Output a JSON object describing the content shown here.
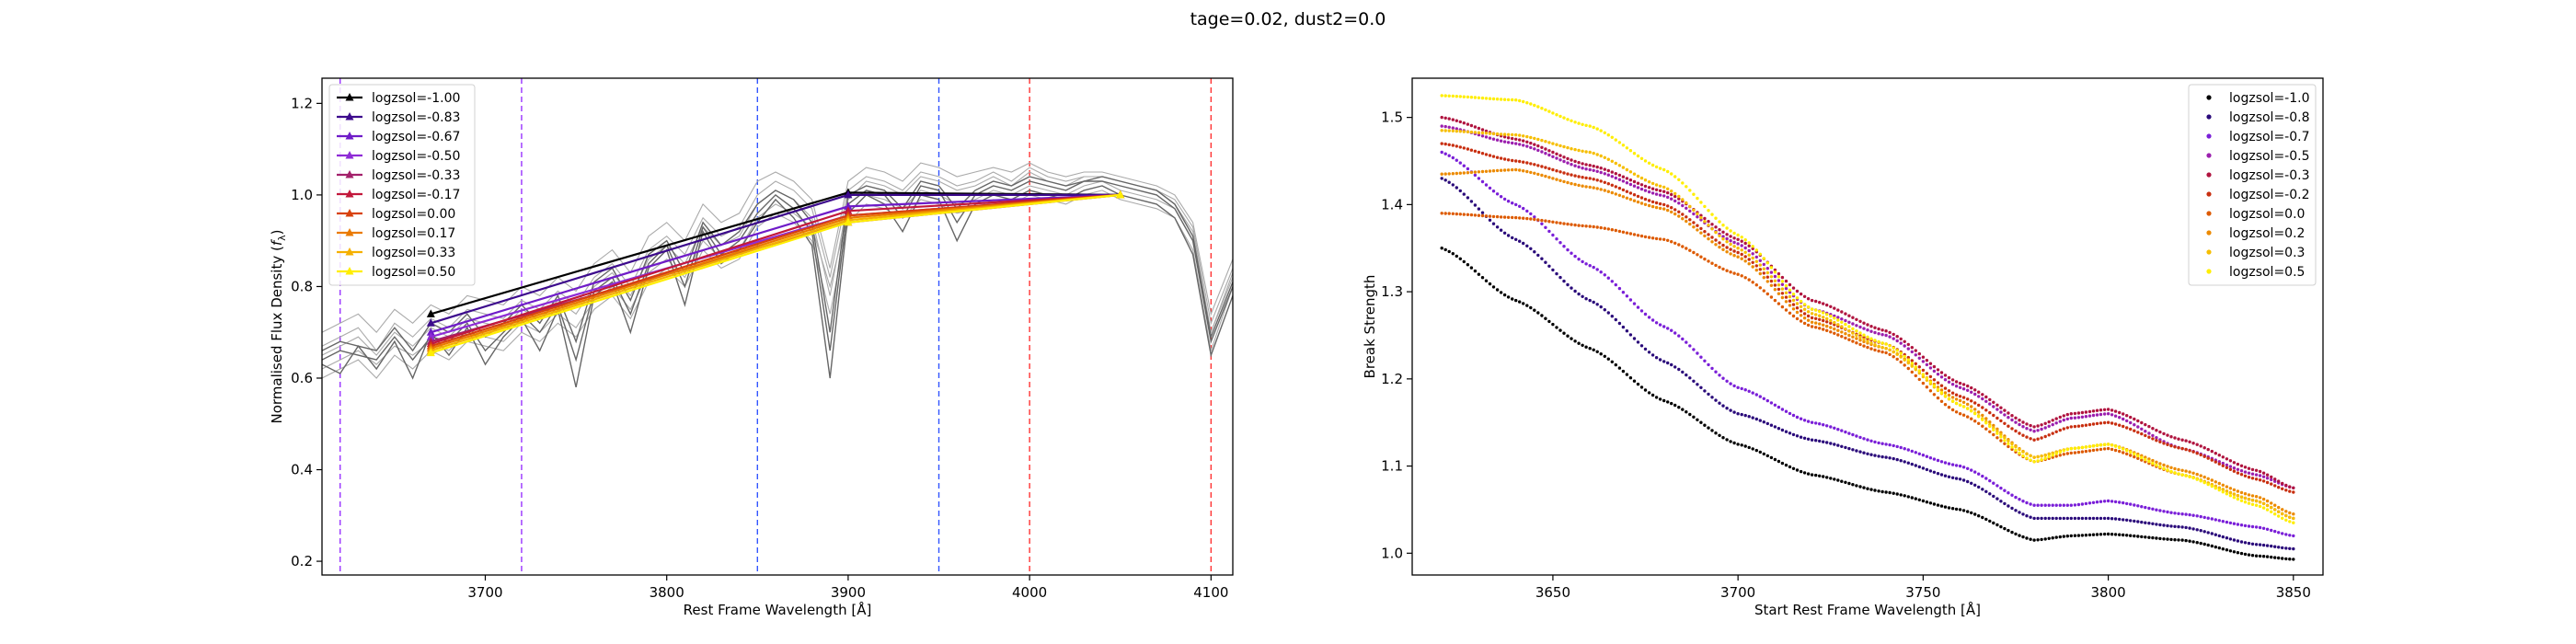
{
  "figure": {
    "suptitle": "tage=0.02, dust2=0.0"
  },
  "chart_data": [
    {
      "type": "line",
      "xlabel": "Rest Frame Wavelength [Å]",
      "ylabel": "Normalised Flux Density (f_λ)",
      "xlim": [
        3610,
        4112
      ],
      "ylim": [
        0.17,
        1.255
      ],
      "xticks": [
        3700,
        3800,
        3900,
        4000,
        4100
      ],
      "yticks": [
        0.2,
        0.4,
        0.6,
        0.8,
        1.0,
        1.2
      ],
      "ytick_labels": [
        "0.2",
        "0.4",
        "0.6",
        "0.8",
        "1.0",
        "1.2"
      ],
      "legend_loc": "upper-left",
      "vlines": [
        {
          "x": 3620,
          "color": "#9933ff"
        },
        {
          "x": 3720,
          "color": "#9933ff"
        },
        {
          "x": 3850,
          "color": "#3355ff"
        },
        {
          "x": 3950,
          "color": "#3355ff"
        },
        {
          "x": 4000,
          "color": "#ff3333"
        },
        {
          "x": 4100,
          "color": "#ff3333"
        }
      ],
      "spectra_x": [
        3610,
        3620,
        3630,
        3640,
        3650,
        3660,
        3670,
        3680,
        3690,
        3700,
        3710,
        3720,
        3730,
        3740,
        3750,
        3760,
        3770,
        3780,
        3790,
        3800,
        3810,
        3820,
        3830,
        3840,
        3850,
        3860,
        3870,
        3880,
        3890,
        3900,
        3910,
        3920,
        3930,
        3940,
        3950,
        3960,
        3970,
        3980,
        3990,
        4000,
        4010,
        4020,
        4030,
        4040,
        4050,
        4060,
        4070,
        4080,
        4090,
        4100,
        4112
      ],
      "spectra": [
        [
          0.62,
          0.64,
          0.66,
          0.63,
          0.67,
          0.65,
          0.68,
          0.66,
          0.7,
          0.69,
          0.68,
          0.72,
          0.7,
          0.74,
          0.71,
          0.77,
          0.8,
          0.75,
          0.83,
          0.86,
          0.82,
          0.9,
          0.86,
          0.88,
          0.95,
          0.98,
          0.96,
          0.93,
          0.8,
          0.96,
          1.0,
          0.99,
          0.97,
          1.01,
          1.0,
          0.98,
          0.99,
          1.01,
          1.0,
          1.02,
          1.01,
          1.0,
          1.02,
          1.03,
          1.01,
          1.0,
          0.99,
          0.97,
          0.9,
          0.7,
          0.82
        ],
        [
          0.65,
          0.67,
          0.69,
          0.65,
          0.7,
          0.67,
          0.71,
          0.69,
          0.73,
          0.72,
          0.71,
          0.75,
          0.73,
          0.77,
          0.74,
          0.8,
          0.83,
          0.78,
          0.86,
          0.89,
          0.85,
          0.93,
          0.89,
          0.91,
          0.98,
          1.01,
          0.99,
          0.95,
          0.78,
          0.99,
          1.03,
          1.02,
          1.0,
          1.04,
          1.03,
          1.01,
          1.02,
          1.04,
          1.02,
          1.05,
          1.03,
          1.02,
          1.04,
          1.04,
          1.03,
          1.02,
          1.01,
          0.99,
          0.93,
          0.72,
          0.84
        ],
        [
          0.6,
          0.62,
          0.64,
          0.6,
          0.65,
          0.62,
          0.66,
          0.64,
          0.68,
          0.67,
          0.66,
          0.7,
          0.68,
          0.72,
          0.69,
          0.75,
          0.78,
          0.73,
          0.81,
          0.84,
          0.8,
          0.88,
          0.84,
          0.86,
          0.93,
          0.96,
          0.94,
          0.9,
          0.74,
          0.94,
          0.98,
          0.97,
          0.95,
          0.99,
          0.98,
          0.96,
          0.97,
          0.99,
          0.98,
          1.0,
          0.99,
          0.98,
          1.0,
          1.01,
          0.99,
          0.98,
          0.97,
          0.95,
          0.88,
          0.66,
          0.8
        ],
        [
          0.7,
          0.72,
          0.74,
          0.7,
          0.75,
          0.72,
          0.76,
          0.74,
          0.78,
          0.77,
          0.76,
          0.8,
          0.78,
          0.82,
          0.79,
          0.85,
          0.88,
          0.83,
          0.91,
          0.94,
          0.9,
          0.98,
          0.94,
          0.96,
          1.03,
          1.05,
          1.03,
          0.99,
          0.84,
          1.03,
          1.06,
          1.05,
          1.03,
          1.07,
          1.06,
          1.04,
          1.05,
          1.06,
          1.05,
          1.07,
          1.05,
          1.04,
          1.05,
          1.05,
          1.04,
          1.03,
          1.02,
          1.0,
          0.94,
          0.74,
          0.86
        ],
        [
          0.67,
          0.69,
          0.71,
          0.66,
          0.72,
          0.69,
          0.73,
          0.71,
          0.75,
          0.74,
          0.73,
          0.77,
          0.75,
          0.79,
          0.76,
          0.82,
          0.85,
          0.8,
          0.88,
          0.91,
          0.87,
          0.95,
          0.91,
          0.93,
          1.0,
          1.03,
          1.01,
          0.97,
          0.82,
          1.01,
          1.04,
          1.03,
          1.01,
          1.05,
          1.04,
          1.02,
          1.03,
          1.05,
          1.03,
          1.06,
          1.04,
          1.03,
          1.04,
          1.04,
          1.03,
          1.02,
          1.01,
          0.98,
          0.92,
          0.7,
          0.83
        ],
        [
          0.63,
          0.61,
          0.67,
          0.62,
          0.68,
          0.6,
          0.7,
          0.65,
          0.71,
          0.63,
          0.69,
          0.73,
          0.66,
          0.75,
          0.58,
          0.78,
          0.81,
          0.7,
          0.84,
          0.88,
          0.76,
          0.92,
          0.85,
          0.88,
          0.94,
          0.99,
          0.95,
          0.89,
          0.6,
          0.96,
          1.0,
          0.98,
          0.92,
          1.0,
          0.99,
          0.9,
          0.98,
          1.0,
          0.99,
          1.01,
          1.0,
          0.99,
          1.01,
          1.02,
          1.0,
          0.99,
          0.98,
          0.95,
          0.87,
          0.65,
          0.78
        ],
        [
          0.64,
          0.66,
          0.65,
          0.64,
          0.69,
          0.64,
          0.69,
          0.68,
          0.72,
          0.66,
          0.7,
          0.74,
          0.7,
          0.76,
          0.64,
          0.79,
          0.82,
          0.74,
          0.85,
          0.89,
          0.8,
          0.93,
          0.87,
          0.9,
          0.96,
          1.0,
          0.97,
          0.92,
          0.66,
          0.98,
          1.01,
          1.0,
          0.95,
          1.02,
          1.01,
          0.94,
          1.0,
          1.02,
          1.01,
          1.03,
          1.02,
          1.01,
          1.03,
          1.03,
          1.02,
          1.01,
          1.0,
          0.97,
          0.9,
          0.68,
          0.8
        ],
        [
          0.66,
          0.68,
          0.67,
          0.66,
          0.71,
          0.66,
          0.72,
          0.7,
          0.74,
          0.69,
          0.72,
          0.76,
          0.72,
          0.78,
          0.68,
          0.81,
          0.84,
          0.77,
          0.87,
          0.9,
          0.83,
          0.94,
          0.89,
          0.92,
          0.98,
          1.01,
          0.99,
          0.94,
          0.7,
          1.0,
          1.02,
          1.01,
          0.97,
          1.03,
          1.02,
          0.97,
          1.01,
          1.03,
          1.02,
          1.04,
          1.03,
          1.02,
          1.03,
          1.04,
          1.03,
          1.02,
          1.01,
          0.98,
          0.91,
          0.69,
          0.81
        ]
      ],
      "series": [
        {
          "name": "logzsol=-1.00",
          "color": "#000000",
          "x": [
            3670,
            3900,
            4050
          ],
          "y": [
            0.74,
            1.005,
            1.0
          ]
        },
        {
          "name": "logzsol=-0.83",
          "color": "#3c0a8c",
          "x": [
            3670,
            3900,
            4050
          ],
          "y": [
            0.72,
            1.0,
            1.0
          ]
        },
        {
          "name": "logzsol=-0.67",
          "color": "#6f1cc8",
          "x": [
            3670,
            3900,
            4050
          ],
          "y": [
            0.7,
            0.975,
            1.0
          ]
        },
        {
          "name": "logzsol=-0.50",
          "color": "#8e2bd6",
          "x": [
            3670,
            3900,
            4050
          ],
          "y": [
            0.69,
            0.955,
            1.0
          ]
        },
        {
          "name": "logzsol=-0.33",
          "color": "#a3206b",
          "x": [
            3670,
            3900,
            4050
          ],
          "y": [
            0.68,
            0.94,
            1.0
          ]
        },
        {
          "name": "logzsol=-0.17",
          "color": "#c2183c",
          "x": [
            3670,
            3900,
            4050
          ],
          "y": [
            0.675,
            0.965,
            1.0
          ]
        },
        {
          "name": "logzsol=0.00",
          "color": "#d8420d",
          "x": [
            3670,
            3900,
            4050
          ],
          "y": [
            0.67,
            0.955,
            1.0
          ]
        },
        {
          "name": "logzsol=0.17",
          "color": "#ea7a00",
          "x": [
            3670,
            3900,
            4050
          ],
          "y": [
            0.665,
            0.95,
            1.0
          ]
        },
        {
          "name": "logzsol=0.33",
          "color": "#f5b000",
          "x": [
            3670,
            3900,
            4050
          ],
          "y": [
            0.66,
            0.945,
            1.0
          ]
        },
        {
          "name": "logzsol=0.50",
          "color": "#ffee00",
          "x": [
            3670,
            3900,
            4050
          ],
          "y": [
            0.655,
            0.94,
            1.0
          ]
        }
      ]
    },
    {
      "type": "scatter",
      "xlabel": "Start Rest Frame Wavelength [Å]",
      "ylabel": "Break Strength",
      "xlim": [
        3612,
        3858
      ],
      "ylim": [
        0.975,
        1.545
      ],
      "xticks": [
        3650,
        3700,
        3750,
        3800,
        3850
      ],
      "yticks": [
        1.0,
        1.1,
        1.2,
        1.3,
        1.4,
        1.5
      ],
      "ytick_labels": [
        "1.0",
        "1.1",
        "1.2",
        "1.3",
        "1.4",
        "1.5"
      ],
      "legend_loc": "upper-right",
      "x": [
        3620,
        3640,
        3660,
        3680,
        3700,
        3720,
        3740,
        3760,
        3780,
        3790,
        3800,
        3820,
        3840,
        3850
      ],
      "series": [
        {
          "name": "logzsol=-1.0",
          "color": "#000000",
          "values": [
            1.35,
            1.29,
            1.235,
            1.175,
            1.125,
            1.09,
            1.07,
            1.05,
            1.015,
            1.02,
            1.022,
            1.015,
            0.997,
            0.993
          ]
        },
        {
          "name": "logzsol=-0.8",
          "color": "#2a0a7a",
          "values": [
            1.43,
            1.36,
            1.29,
            1.22,
            1.16,
            1.13,
            1.11,
            1.085,
            1.04,
            1.04,
            1.04,
            1.03,
            1.01,
            1.005
          ]
        },
        {
          "name": "logzsol=-0.7",
          "color": "#7a1fd8",
          "values": [
            1.46,
            1.4,
            1.33,
            1.26,
            1.19,
            1.15,
            1.125,
            1.1,
            1.055,
            1.055,
            1.06,
            1.045,
            1.03,
            1.02
          ]
        },
        {
          "name": "logzsol=-0.5",
          "color": "#9b1fae",
          "values": [
            1.49,
            1.47,
            1.44,
            1.41,
            1.355,
            1.28,
            1.25,
            1.19,
            1.14,
            1.155,
            1.16,
            1.12,
            1.09,
            1.075
          ]
        },
        {
          "name": "logzsol=-0.3",
          "color": "#b0143f",
          "values": [
            1.5,
            1.475,
            1.445,
            1.415,
            1.36,
            1.29,
            1.255,
            1.195,
            1.145,
            1.16,
            1.165,
            1.13,
            1.095,
            1.075
          ]
        },
        {
          "name": "logzsol=-0.2",
          "color": "#c82f10",
          "values": [
            1.47,
            1.45,
            1.43,
            1.4,
            1.345,
            1.27,
            1.24,
            1.18,
            1.13,
            1.145,
            1.15,
            1.12,
            1.085,
            1.07
          ]
        },
        {
          "name": "logzsol=0.0",
          "color": "#dd5a00",
          "values": [
            1.39,
            1.385,
            1.375,
            1.36,
            1.32,
            1.26,
            1.23,
            1.16,
            1.105,
            1.115,
            1.12,
            1.09,
            1.06,
            1.04
          ]
        },
        {
          "name": "logzsol=0.2",
          "color": "#ec8a00",
          "values": [
            1.435,
            1.44,
            1.42,
            1.395,
            1.34,
            1.265,
            1.235,
            1.175,
            1.11,
            1.12,
            1.125,
            1.095,
            1.065,
            1.045
          ]
        },
        {
          "name": "logzsol=0.3",
          "color": "#f6be00",
          "values": [
            1.485,
            1.48,
            1.46,
            1.42,
            1.35,
            1.275,
            1.235,
            1.17,
            1.11,
            1.12,
            1.125,
            1.09,
            1.06,
            1.04
          ]
        },
        {
          "name": "logzsol=0.5",
          "color": "#ffee00",
          "values": [
            1.525,
            1.52,
            1.49,
            1.44,
            1.365,
            1.28,
            1.24,
            1.17,
            1.105,
            1.12,
            1.125,
            1.09,
            1.055,
            1.035
          ]
        }
      ]
    }
  ]
}
